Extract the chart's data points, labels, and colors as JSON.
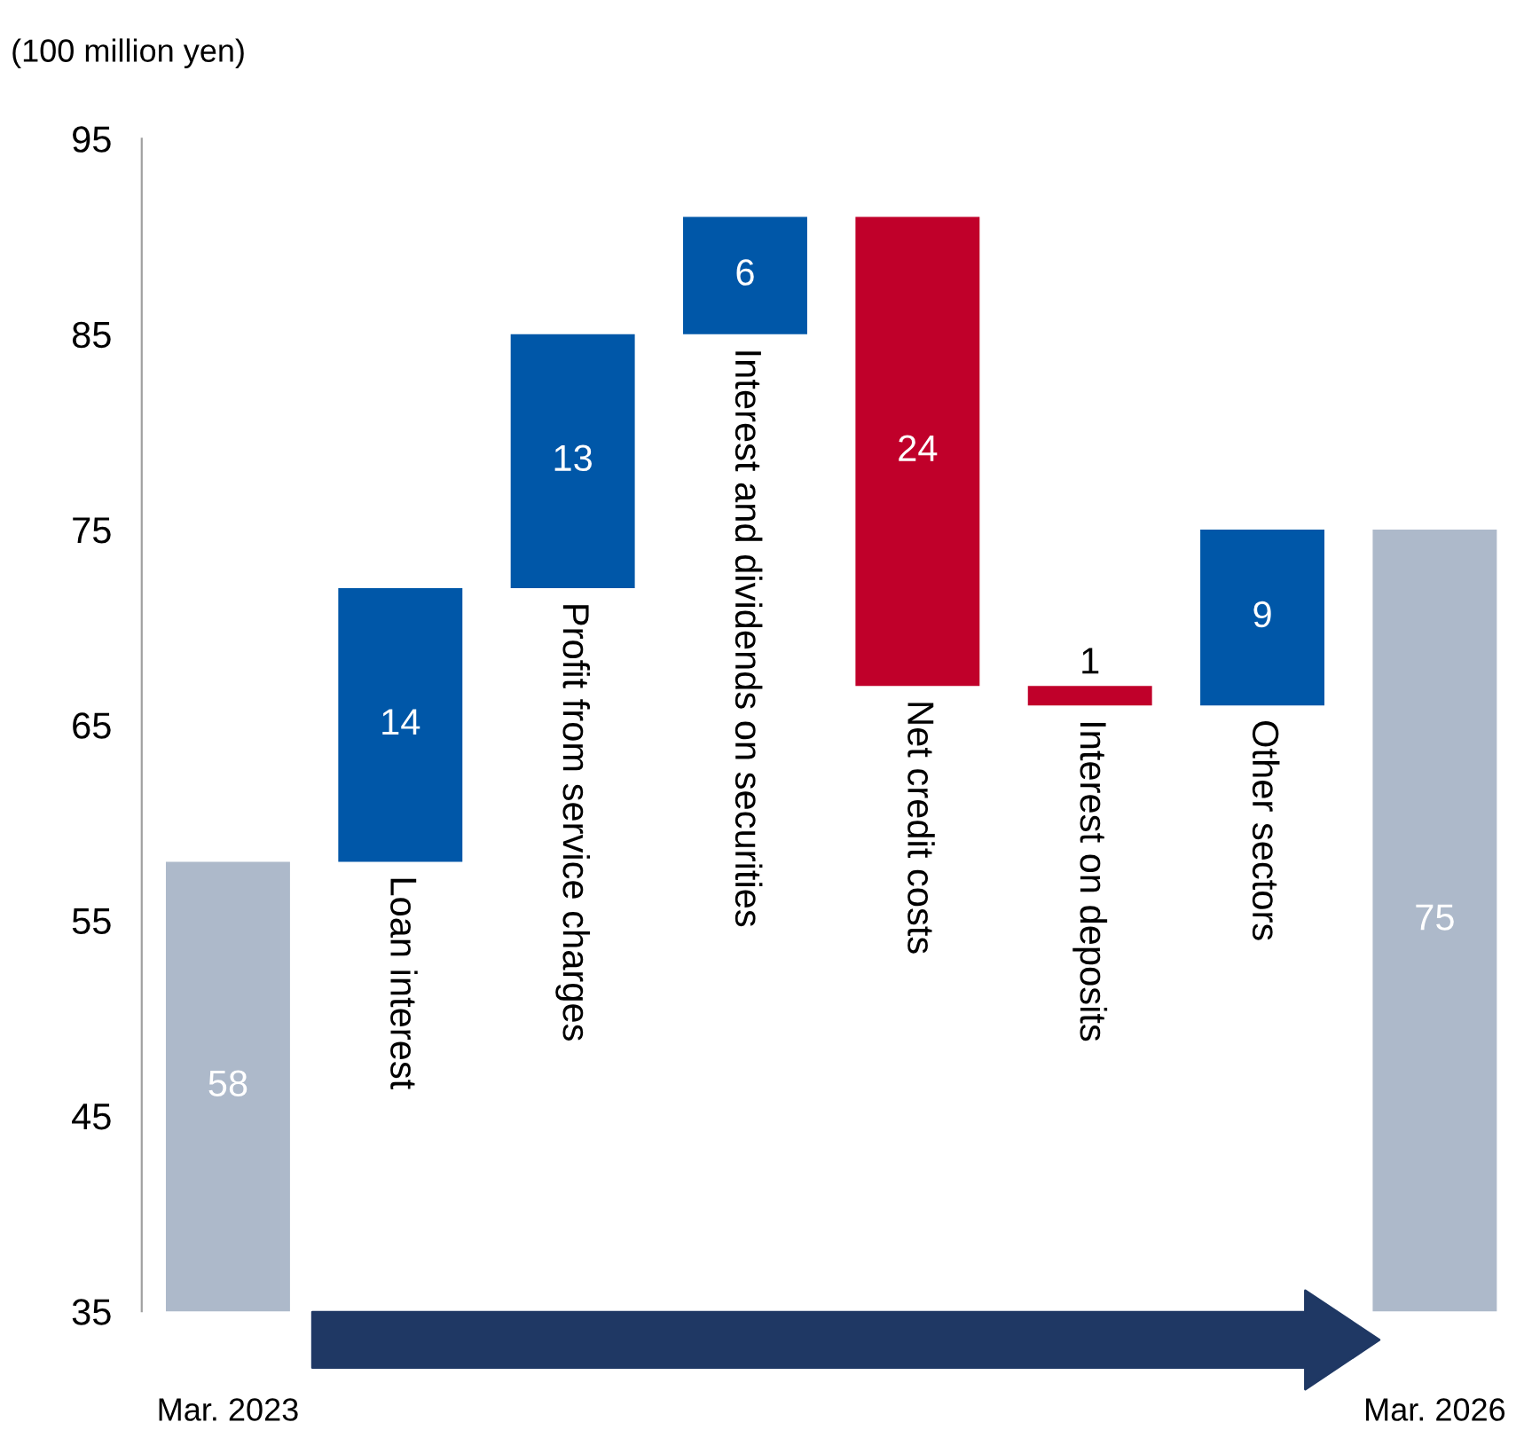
{
  "chart_data": {
    "type": "bar",
    "ylabel": "(100 million yen)",
    "categories": [
      "Mar. 2023",
      "Loan interest",
      "Profit from service charges",
      "Interest and dividends on securities",
      "Net credit costs",
      "Interest on deposits",
      "Other sectors",
      "Mar. 2026"
    ],
    "values": [
      58,
      14,
      13,
      6,
      -24,
      -1,
      9,
      75
    ],
    "base": [
      0,
      58,
      72,
      85,
      91,
      67,
      66,
      0
    ],
    "colors": [
      "#adb9ca",
      "#0057a8",
      "#0057a8",
      "#0057a8",
      "#c0002a",
      "#c0002a",
      "#0057a8",
      "#adb9ca"
    ],
    "ylim": [
      35,
      95
    ],
    "yticks": [
      35,
      45,
      55,
      65,
      75,
      85,
      95
    ],
    "value_labels": [
      "58",
      "14",
      "13",
      "6",
      "24",
      "1",
      "9",
      "75"
    ],
    "grid": false
  }
}
